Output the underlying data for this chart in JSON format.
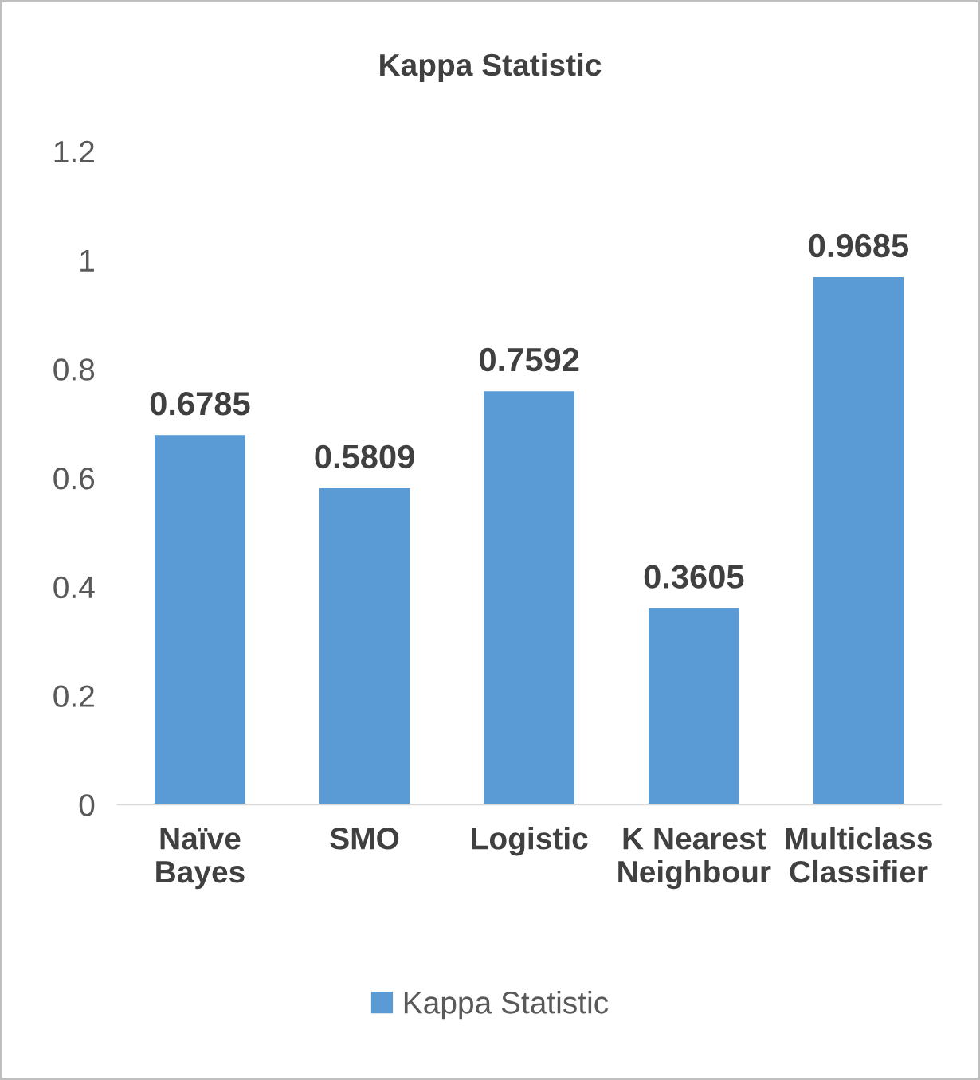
{
  "chart_data": {
    "type": "bar",
    "title": "Kappa Statistic",
    "categories": [
      "Naïve\nBayes",
      "SMO",
      "Logistic",
      "K Nearest\nNeighbour",
      "Multiclass\nClassifier"
    ],
    "series": [
      {
        "name": "Kappa Statistic",
        "color": "#5b9bd5",
        "values": [
          0.6785,
          0.5809,
          0.7592,
          0.3605,
          0.9685
        ]
      }
    ],
    "value_labels": [
      "0.6785",
      "0.5809",
      "0.7592",
      "0.3605",
      "0.9685"
    ],
    "ylim": [
      0,
      1.2
    ],
    "yticks": [
      0,
      0.2,
      0.4,
      0.6,
      0.8,
      1,
      1.2
    ],
    "grid": false,
    "legend": "bottom"
  }
}
